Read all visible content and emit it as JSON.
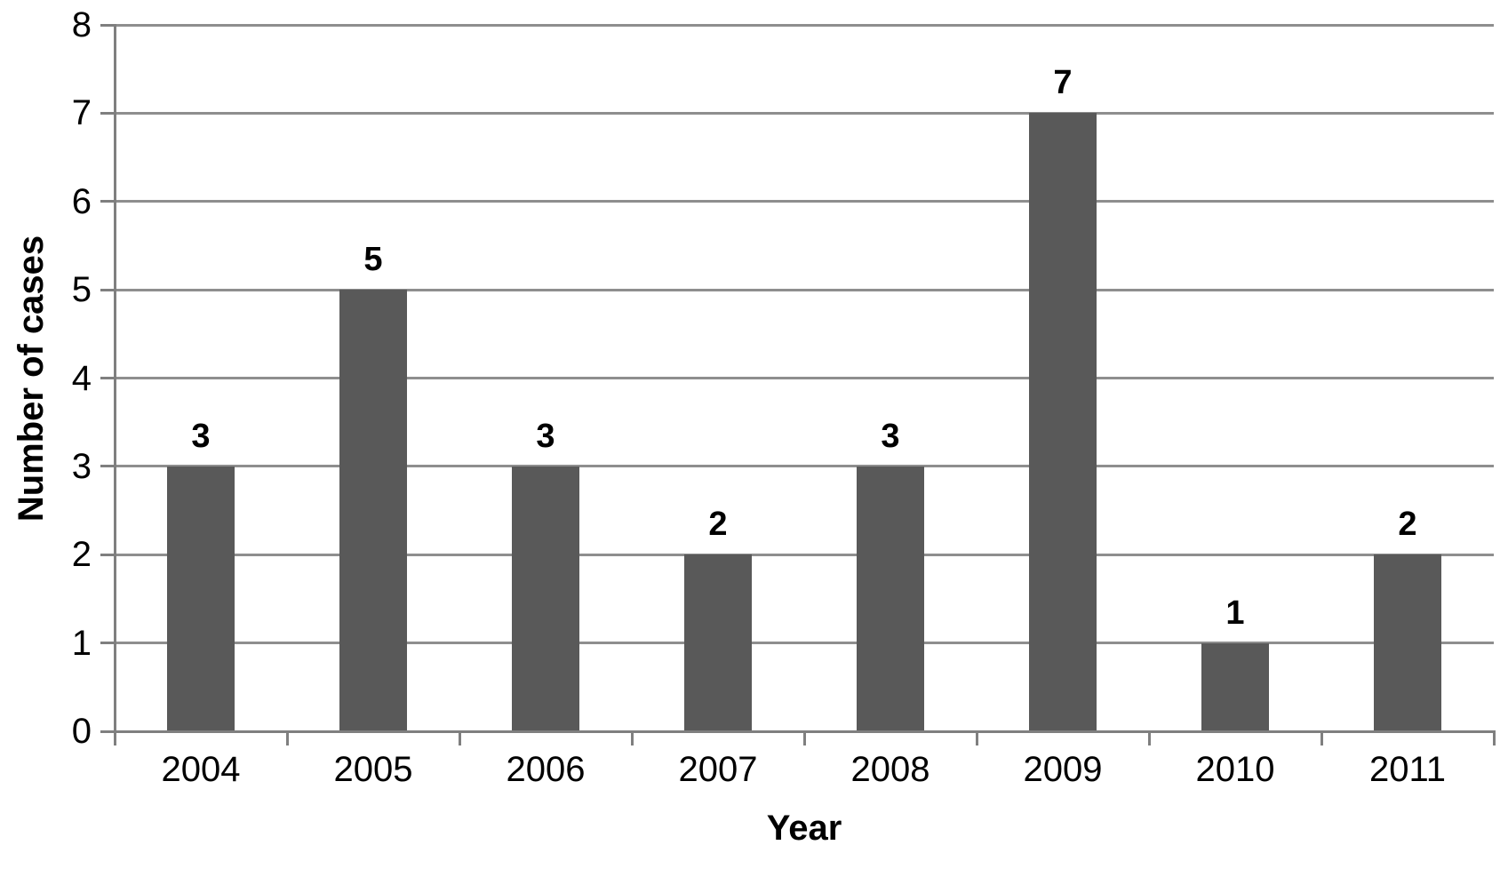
{
  "chart_data": {
    "type": "bar",
    "categories": [
      "2004",
      "2005",
      "2006",
      "2007",
      "2008",
      "2009",
      "2010",
      "2011"
    ],
    "values": [
      3,
      5,
      3,
      2,
      3,
      7,
      1,
      2
    ],
    "data_labels": [
      "3",
      "5",
      "3",
      "2",
      "3",
      "7",
      "1",
      "2"
    ],
    "title": "",
    "xlabel": "Year",
    "ylabel": "Number of cases",
    "ylim": [
      0,
      8
    ],
    "yticks": [
      0,
      1,
      2,
      3,
      4,
      5,
      6,
      7,
      8
    ],
    "grid": "horizontal",
    "legend": "none",
    "bar_color": "#595959",
    "gridline_color": "#8e8e8e",
    "axis_color": "#7f7f7f",
    "label_color": "#000000"
  }
}
